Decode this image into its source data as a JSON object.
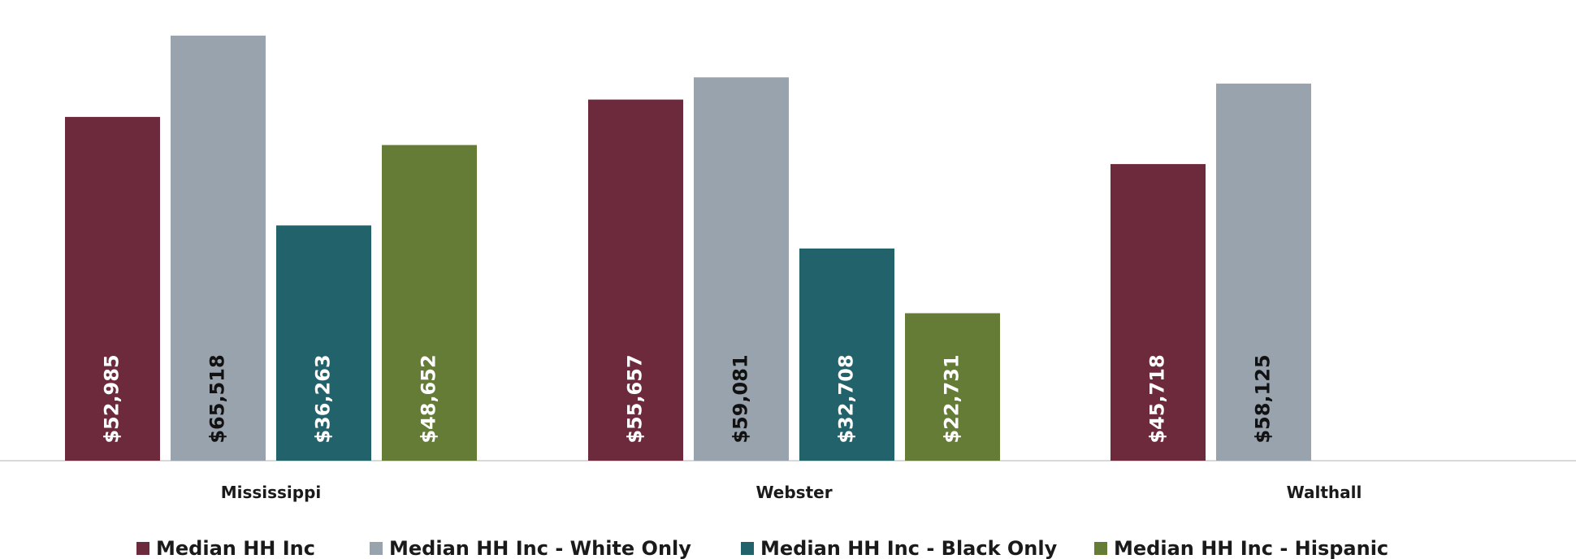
{
  "chart_data": {
    "type": "bar",
    "categories": [
      "Mississippi",
      "Webster",
      "Walthall"
    ],
    "series": [
      {
        "name": "Median HH Inc",
        "color": "#6d2a3c",
        "label_color": "#ffffff",
        "values": [
          52985,
          55657,
          45718
        ],
        "labels": [
          "$52,985",
          "$55,657",
          "$45,718"
        ]
      },
      {
        "name": "Median HH Inc - White Only",
        "color": "#98a3ad",
        "label_color": "#111111",
        "values": [
          65518,
          59081,
          58125
        ],
        "labels": [
          "$65,518",
          "$59,081",
          "$58,125"
        ]
      },
      {
        "name": "Median HH Inc - Black Only",
        "color": "#22626b",
        "label_color": "#ffffff",
        "values": [
          36263,
          32708,
          null
        ],
        "labels": [
          "$36,263",
          "$32,708",
          ""
        ]
      },
      {
        "name": "Median HH Inc - Hispanic",
        "color": "#647c36",
        "label_color": "#ffffff",
        "values": [
          48652,
          22731,
          null
        ],
        "labels": [
          "$48,652",
          "$22,731",
          ""
        ]
      }
    ],
    "ylim": [
      0,
      68000
    ],
    "grid": false,
    "legend": "bottom",
    "axis_color": "#d9d9d9"
  }
}
